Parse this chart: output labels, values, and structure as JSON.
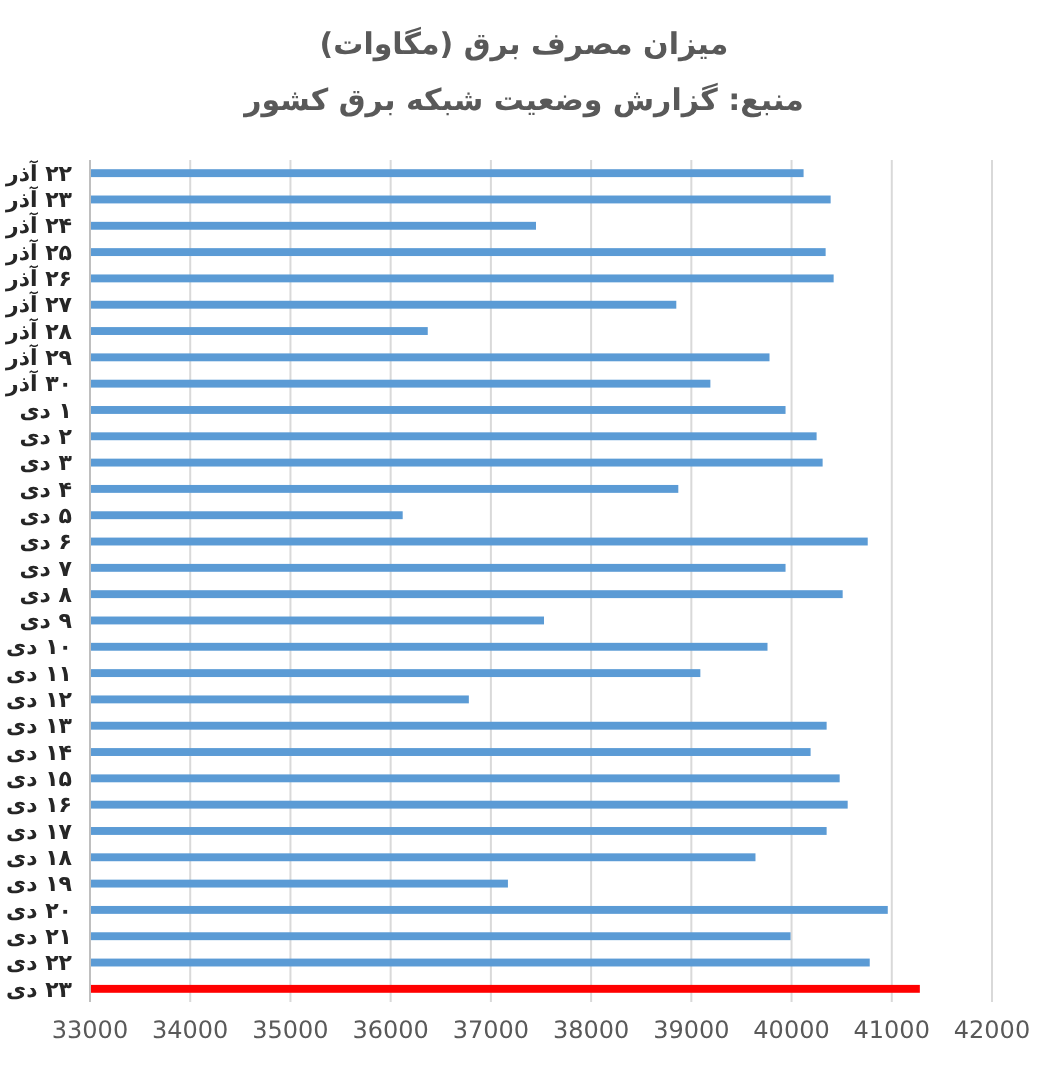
{
  "chart_data": {
    "type": "bar",
    "orientation": "horizontal",
    "title": "میزان مصرف برق (مگاوات)",
    "subtitle": "منبع: گزارش وضعیت شبکه برق کشور",
    "categories": [
      "۲۲ آذر",
      "۲۳ آذر",
      "۲۴ آذر",
      "۲۵ آذر",
      "۲۶ آذر",
      "۲۷ آذر",
      "۲۸ آذر",
      "۲۹ آذر",
      "۳۰ آذر",
      "۱ دی",
      "۲ دی",
      "۳ دی",
      "۴ دی",
      "۵ دی",
      "۶ دی",
      "۷ دی",
      "۸ دی",
      "۹ دی",
      "۱۰ دی",
      "۱۱ دی",
      "۱۲ دی",
      "۱۳ دی",
      "۱۴ دی",
      "۱۵ دی",
      "۱۶ دی",
      "۱۷ دی",
      "۱۸ دی",
      "۱۹ دی",
      "۲۰ دی",
      "۲۱ دی",
      "۲۲ دی",
      "۲۳ دی"
    ],
    "values": [
      40120,
      40390,
      37450,
      40340,
      40420,
      38850,
      36370,
      39780,
      39190,
      39940,
      40250,
      40310,
      38870,
      36120,
      40760,
      39940,
      40510,
      37530,
      39760,
      39090,
      36780,
      40350,
      40190,
      40480,
      40560,
      40350,
      39640,
      37170,
      40960,
      39990,
      40780,
      41280
    ],
    "colors": [
      "#5b9bd5",
      "#5b9bd5",
      "#5b9bd5",
      "#5b9bd5",
      "#5b9bd5",
      "#5b9bd5",
      "#5b9bd5",
      "#5b9bd5",
      "#5b9bd5",
      "#5b9bd5",
      "#5b9bd5",
      "#5b9bd5",
      "#5b9bd5",
      "#5b9bd5",
      "#5b9bd5",
      "#5b9bd5",
      "#5b9bd5",
      "#5b9bd5",
      "#5b9bd5",
      "#5b9bd5",
      "#5b9bd5",
      "#5b9bd5",
      "#5b9bd5",
      "#5b9bd5",
      "#5b9bd5",
      "#5b9bd5",
      "#5b9bd5",
      "#5b9bd5",
      "#5b9bd5",
      "#5b9bd5",
      "#5b9bd5",
      "#ff0000"
    ],
    "xlim": [
      33000,
      42000
    ],
    "xticks": [
      33000,
      34000,
      35000,
      36000,
      37000,
      38000,
      39000,
      40000,
      41000,
      42000
    ],
    "grid": "x"
  }
}
